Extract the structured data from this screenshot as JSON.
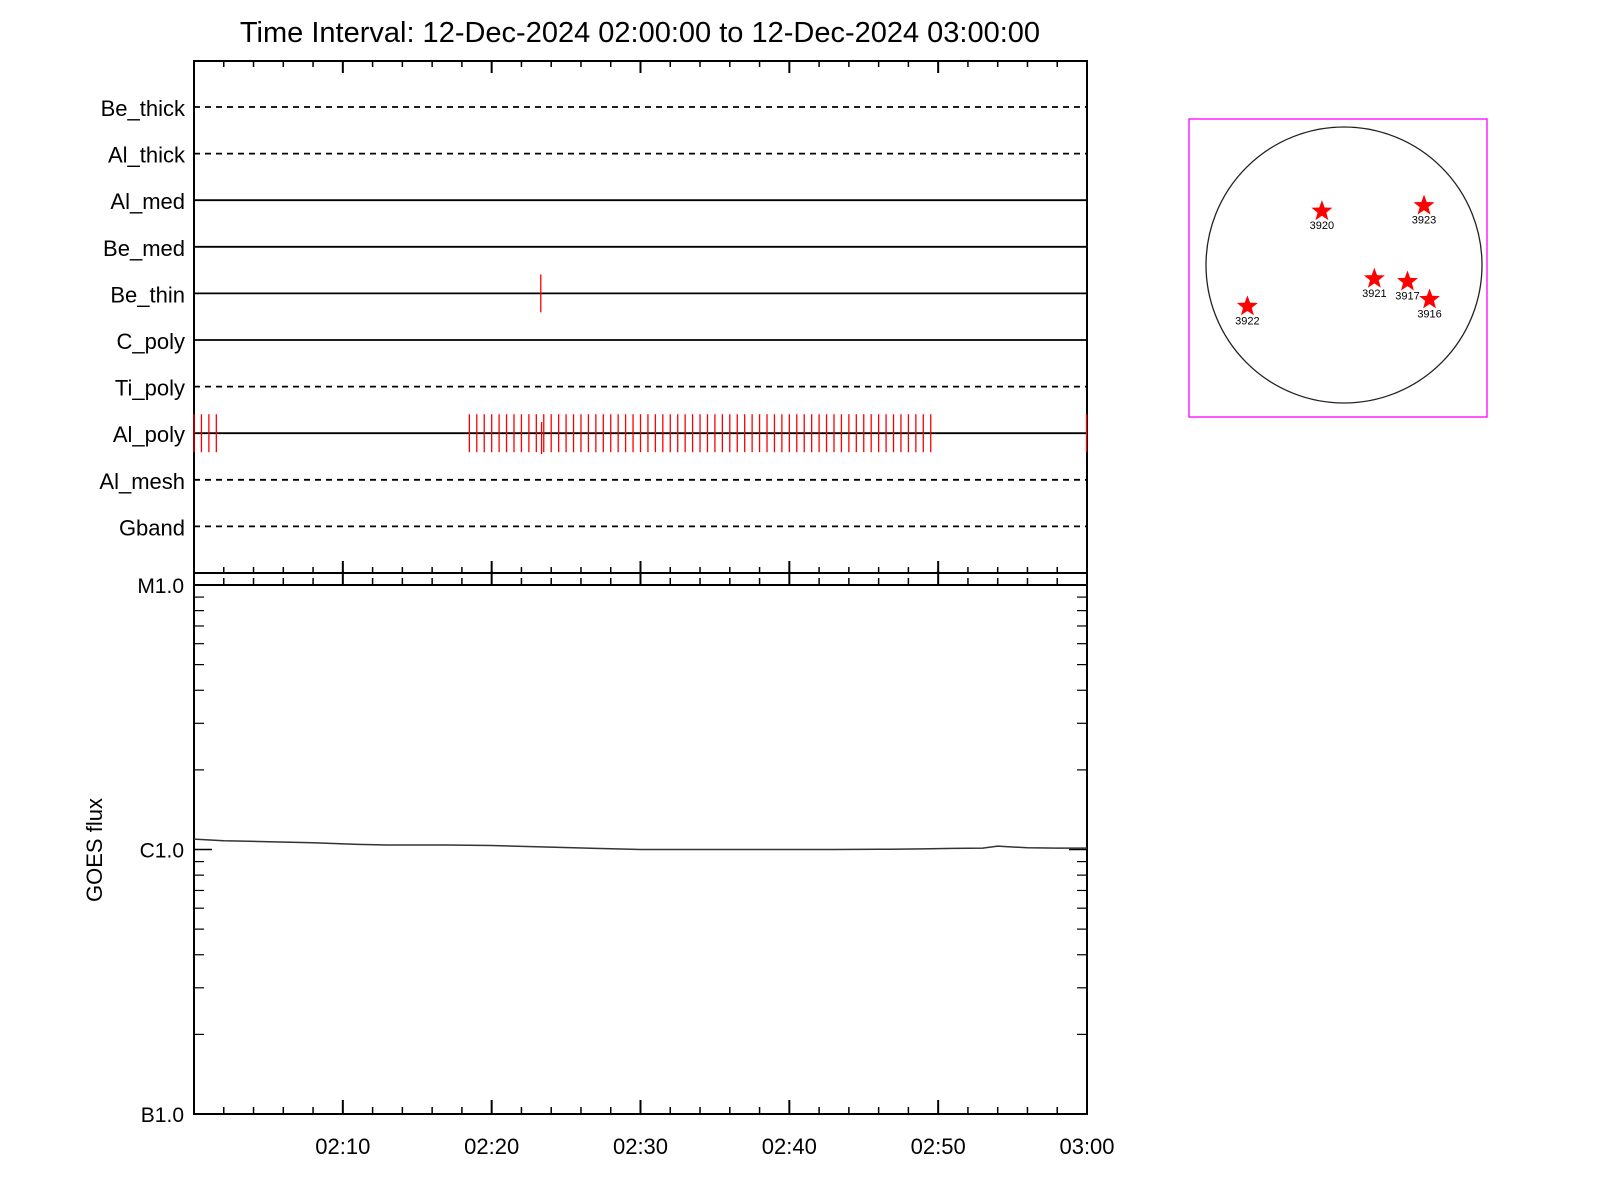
{
  "title": "Time Interval: 12-Dec-2024 02:00:00 to 12-Dec-2024 03:00:00",
  "colors": {
    "event": "#ff0000",
    "frame": "#ff00ff",
    "axis": "#000000"
  },
  "chart_data": [
    {
      "type": "timeline",
      "channels": [
        {
          "name": "Be_thick",
          "style": "dashed",
          "events": []
        },
        {
          "name": "Al_thick",
          "style": "dashed",
          "events": []
        },
        {
          "name": "Al_med",
          "style": "solid",
          "events": []
        },
        {
          "name": "Be_med",
          "style": "solid",
          "events": []
        },
        {
          "name": "Be_thin",
          "style": "solid",
          "events": [
            23.3
          ]
        },
        {
          "name": "C_poly",
          "style": "solid",
          "events": []
        },
        {
          "name": "Ti_poly",
          "style": "dashed",
          "events": []
        },
        {
          "name": "Al_poly",
          "style": "solid",
          "event_groups": [
            {
              "start": 0.0,
              "end": 1.5,
              "step": 0.5
            },
            {
              "start": 18.5,
              "end": 49.5,
              "step": 0.5
            },
            {
              "start": 60.0,
              "end": 60.0,
              "step": 0.5
            }
          ]
        },
        {
          "name": "Al_mesh",
          "style": "dashed",
          "events": []
        },
        {
          "name": "Gband",
          "style": "dashed",
          "events": []
        }
      ],
      "x_range_minutes": [
        0,
        60
      ]
    },
    {
      "type": "line",
      "ylabel": "GOES flux",
      "yscale": "log",
      "ylim": [
        1e-07,
        1e-05
      ],
      "yticks": [
        {
          "value": 1e-05,
          "label": "M1.0"
        },
        {
          "value": 1e-06,
          "label": "C1.0"
        },
        {
          "value": 1e-07,
          "label": "B1.0"
        }
      ],
      "xticks": [
        {
          "minute": 10,
          "label": "02:10"
        },
        {
          "minute": 20,
          "label": "02:20"
        },
        {
          "minute": 30,
          "label": "02:30"
        },
        {
          "minute": 40,
          "label": "02:40"
        },
        {
          "minute": 50,
          "label": "02:50"
        },
        {
          "minute": 60,
          "label": "03:00"
        }
      ],
      "series": [
        {
          "x": [
            0,
            2,
            5,
            8,
            11,
            13,
            17,
            20,
            23,
            27,
            30,
            33,
            36,
            40,
            43,
            46,
            49,
            51,
            53,
            54,
            56,
            58,
            60
          ],
          "y": [
            1.095e-06,
            1.08e-06,
            1.07e-06,
            1.06e-06,
            1.045e-06,
            1.04e-06,
            1.04e-06,
            1.035e-06,
            1.025e-06,
            1.01e-06,
            1e-06,
            1e-06,
            1e-06,
            1e-06,
            1e-06,
            1.002e-06,
            1.005e-06,
            1.01e-06,
            1.012e-06,
            1.03e-06,
            1.015e-06,
            1.012e-06,
            1.012e-06
          ]
        }
      ]
    },
    {
      "type": "scatter",
      "markers": [
        {
          "label": "3920",
          "x": -0.16,
          "y": 0.39
        },
        {
          "label": "3923",
          "x": 0.58,
          "y": 0.43
        },
        {
          "label": "3921",
          "x": 0.22,
          "y": -0.1
        },
        {
          "label": "3917",
          "x": 0.46,
          "y": -0.12
        },
        {
          "label": "3916",
          "x": 0.62,
          "y": -0.25
        },
        {
          "label": "3922",
          "x": -0.7,
          "y": -0.3
        }
      ]
    }
  ]
}
